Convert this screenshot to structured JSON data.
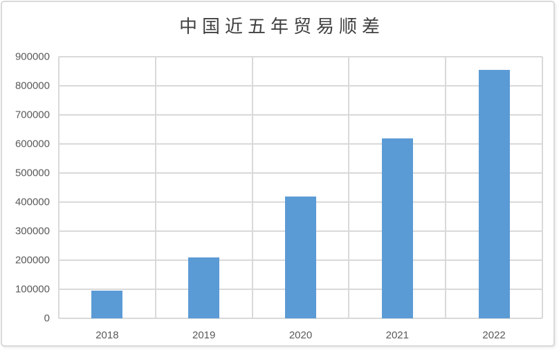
{
  "window": {
    "background": "#ffffff",
    "frame_border_color": "#d9d9d9"
  },
  "chart_data": {
    "type": "bar",
    "title": "中国近五年贸易顺差",
    "categories": [
      "2018",
      "2019",
      "2020",
      "2021",
      "2022"
    ],
    "values": [
      95000,
      210000,
      420000,
      620000,
      855000
    ],
    "ylim": [
      0,
      900000
    ],
    "y_ticks": [
      0,
      100000,
      200000,
      300000,
      400000,
      500000,
      600000,
      700000,
      800000,
      900000
    ],
    "grid": "major horizontal and vertical gridlines",
    "legend": "none",
    "bar_color": "#5b9bd5",
    "gridline_color": "#d9d9d9",
    "axis_label_color": "#595959",
    "title_color": "#404040"
  }
}
